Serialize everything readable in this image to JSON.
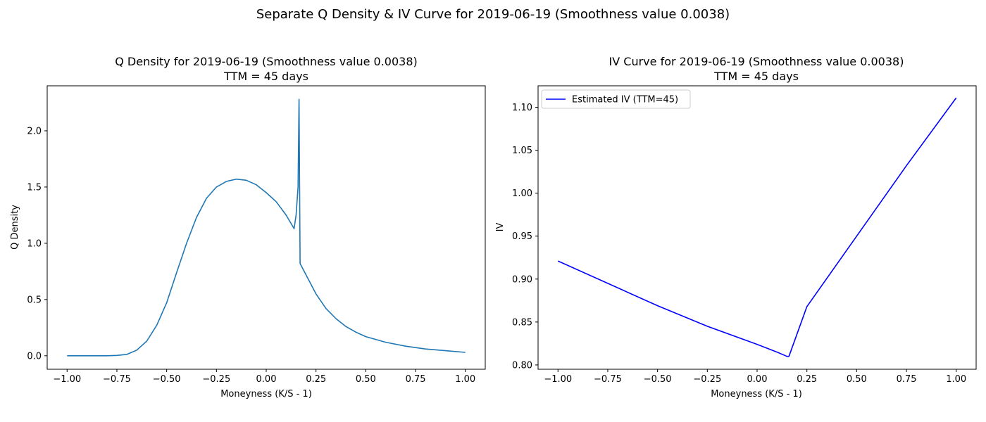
{
  "figure": {
    "suptitle": "Separate Q Density & IV Curve for 2019-06-19 (Smoothness value 0.0038)"
  },
  "chart_data": [
    {
      "type": "line",
      "title": "Q Density for 2019-06-19 (Smoothness value 0.0038)",
      "subtitle": "TTM = 45 days",
      "xlabel": "Moneyness (K/S - 1)",
      "ylabel": "Q Density",
      "xlim": [
        -1.1,
        1.1
      ],
      "ylim": [
        -0.12,
        2.4
      ],
      "xticks": [
        -1.0,
        -0.75,
        -0.5,
        -0.25,
        0.0,
        0.25,
        0.5,
        0.75,
        1.0
      ],
      "xtick_labels": [
        "−1.00",
        "−0.75",
        "−0.50",
        "−0.25",
        "0.00",
        "0.25",
        "0.50",
        "0.75",
        "1.00"
      ],
      "yticks": [
        0.0,
        0.5,
        1.0,
        1.5,
        2.0
      ],
      "ytick_labels": [
        "0.0",
        "0.5",
        "1.0",
        "1.5",
        "2.0"
      ],
      "grid": false,
      "legend": null,
      "series": [
        {
          "color": "#1f77b4",
          "x": [
            -1.0,
            -0.9,
            -0.8,
            -0.75,
            -0.7,
            -0.65,
            -0.6,
            -0.55,
            -0.5,
            -0.45,
            -0.4,
            -0.35,
            -0.3,
            -0.25,
            -0.2,
            -0.15,
            -0.1,
            -0.05,
            0.0,
            0.05,
            0.1,
            0.14,
            0.15,
            0.16,
            0.165,
            0.17,
            0.2,
            0.25,
            0.3,
            0.35,
            0.4,
            0.45,
            0.5,
            0.6,
            0.7,
            0.8,
            0.9,
            1.0
          ],
          "y": [
            0.0,
            0.0,
            0.0,
            0.003,
            0.012,
            0.05,
            0.13,
            0.27,
            0.47,
            0.74,
            1.0,
            1.23,
            1.4,
            1.5,
            1.55,
            1.57,
            1.56,
            1.52,
            1.45,
            1.37,
            1.25,
            1.13,
            1.25,
            1.5,
            2.28,
            0.82,
            0.72,
            0.55,
            0.42,
            0.33,
            0.26,
            0.21,
            0.17,
            0.12,
            0.085,
            0.06,
            0.045,
            0.03
          ]
        }
      ]
    },
    {
      "type": "line",
      "title": "IV Curve for 2019-06-19 (Smoothness value 0.0038)",
      "subtitle": "TTM = 45 days",
      "xlabel": "Moneyness (K/S - 1)",
      "ylabel": "IV",
      "xlim": [
        -1.1,
        1.1
      ],
      "ylim": [
        0.795,
        1.125
      ],
      "xticks": [
        -1.0,
        -0.75,
        -0.5,
        -0.25,
        0.0,
        0.25,
        0.5,
        0.75,
        1.0
      ],
      "xtick_labels": [
        "−1.00",
        "−0.75",
        "−0.50",
        "−0.25",
        "0.00",
        "0.25",
        "0.50",
        "0.75",
        "1.00"
      ],
      "yticks": [
        0.8,
        0.85,
        0.9,
        0.95,
        1.0,
        1.05,
        1.1
      ],
      "ytick_labels": [
        "0.80",
        "0.85",
        "0.90",
        "0.95",
        "1.00",
        "1.05",
        "1.10"
      ],
      "grid": false,
      "legend": "top-left",
      "series": [
        {
          "name": "Estimated IV (TTM=45)",
          "color": "#0000ff",
          "x": [
            -1.0,
            -0.75,
            -0.5,
            -0.25,
            0.0,
            0.1,
            0.15,
            0.16,
            0.25,
            0.5,
            0.75,
            1.0
          ],
          "y": [
            0.921,
            0.895,
            0.869,
            0.845,
            0.824,
            0.815,
            0.81,
            0.81,
            0.868,
            0.95,
            1.032,
            1.111
          ]
        }
      ]
    }
  ]
}
